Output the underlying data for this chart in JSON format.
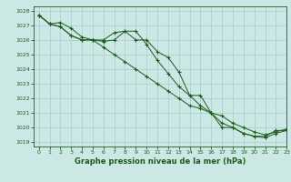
{
  "title": "Graphe pression niveau de la mer (hPa)",
  "background_color": "#cce8e4",
  "grid_color": "#aacccc",
  "line_color": "#1e5c1e",
  "xlim": [
    -0.5,
    23
  ],
  "ylim": [
    1018.7,
    1028.3
  ],
  "xticks": [
    0,
    1,
    2,
    3,
    4,
    5,
    6,
    7,
    8,
    9,
    10,
    11,
    12,
    13,
    14,
    15,
    16,
    17,
    18,
    19,
    20,
    21,
    22,
    23
  ],
  "yticks": [
    1019,
    1020,
    1021,
    1022,
    1023,
    1024,
    1025,
    1026,
    1027,
    1028
  ],
  "series": [
    {
      "x": [
        0,
        1,
        2,
        3,
        4,
        5,
        6,
        7,
        8,
        9,
        10,
        11,
        12,
        13,
        14,
        15,
        16,
        17,
        18,
        19,
        20,
        21,
        22,
        23
      ],
      "y": [
        1027.7,
        1027.1,
        1027.2,
        1026.8,
        1026.2,
        1026.0,
        1026.0,
        1026.5,
        1026.6,
        1026.0,
        1026.0,
        1025.2,
        1024.8,
        1023.8,
        1022.2,
        1022.2,
        1021.0,
        1020.0,
        1020.0,
        1019.6,
        1019.4,
        1019.4,
        1019.8,
        1019.8
      ]
    },
    {
      "x": [
        0,
        1,
        2,
        3,
        4,
        5,
        6,
        7,
        8,
        9,
        10,
        11,
        12,
        13,
        14,
        15,
        16,
        17,
        18,
        19,
        20,
        21,
        22,
        23
      ],
      "y": [
        1027.7,
        1027.1,
        1026.9,
        1026.3,
        1026.0,
        1026.0,
        1025.9,
        1026.0,
        1026.6,
        1026.6,
        1025.7,
        1024.6,
        1023.7,
        1022.8,
        1022.2,
        1021.5,
        1021.0,
        1020.3,
        1020.0,
        1019.6,
        1019.4,
        1019.3,
        1019.6,
        1019.8
      ]
    },
    {
      "x": [
        0,
        1,
        2,
        3,
        4,
        5,
        6,
        7,
        8,
        9,
        10,
        11,
        12,
        13,
        14,
        15,
        16,
        17,
        18,
        19,
        20,
        21,
        22,
        23
      ],
      "y": [
        1027.7,
        1027.1,
        1026.9,
        1026.3,
        1026.0,
        1026.0,
        1025.5,
        1025.0,
        1024.5,
        1024.0,
        1023.5,
        1023.0,
        1022.5,
        1022.0,
        1021.5,
        1021.3,
        1021.0,
        1020.8,
        1020.3,
        1020.0,
        1019.7,
        1019.5,
        1019.7,
        1019.9
      ]
    }
  ],
  "title_fontsize": 6.0,
  "tick_fontsize": 4.5
}
